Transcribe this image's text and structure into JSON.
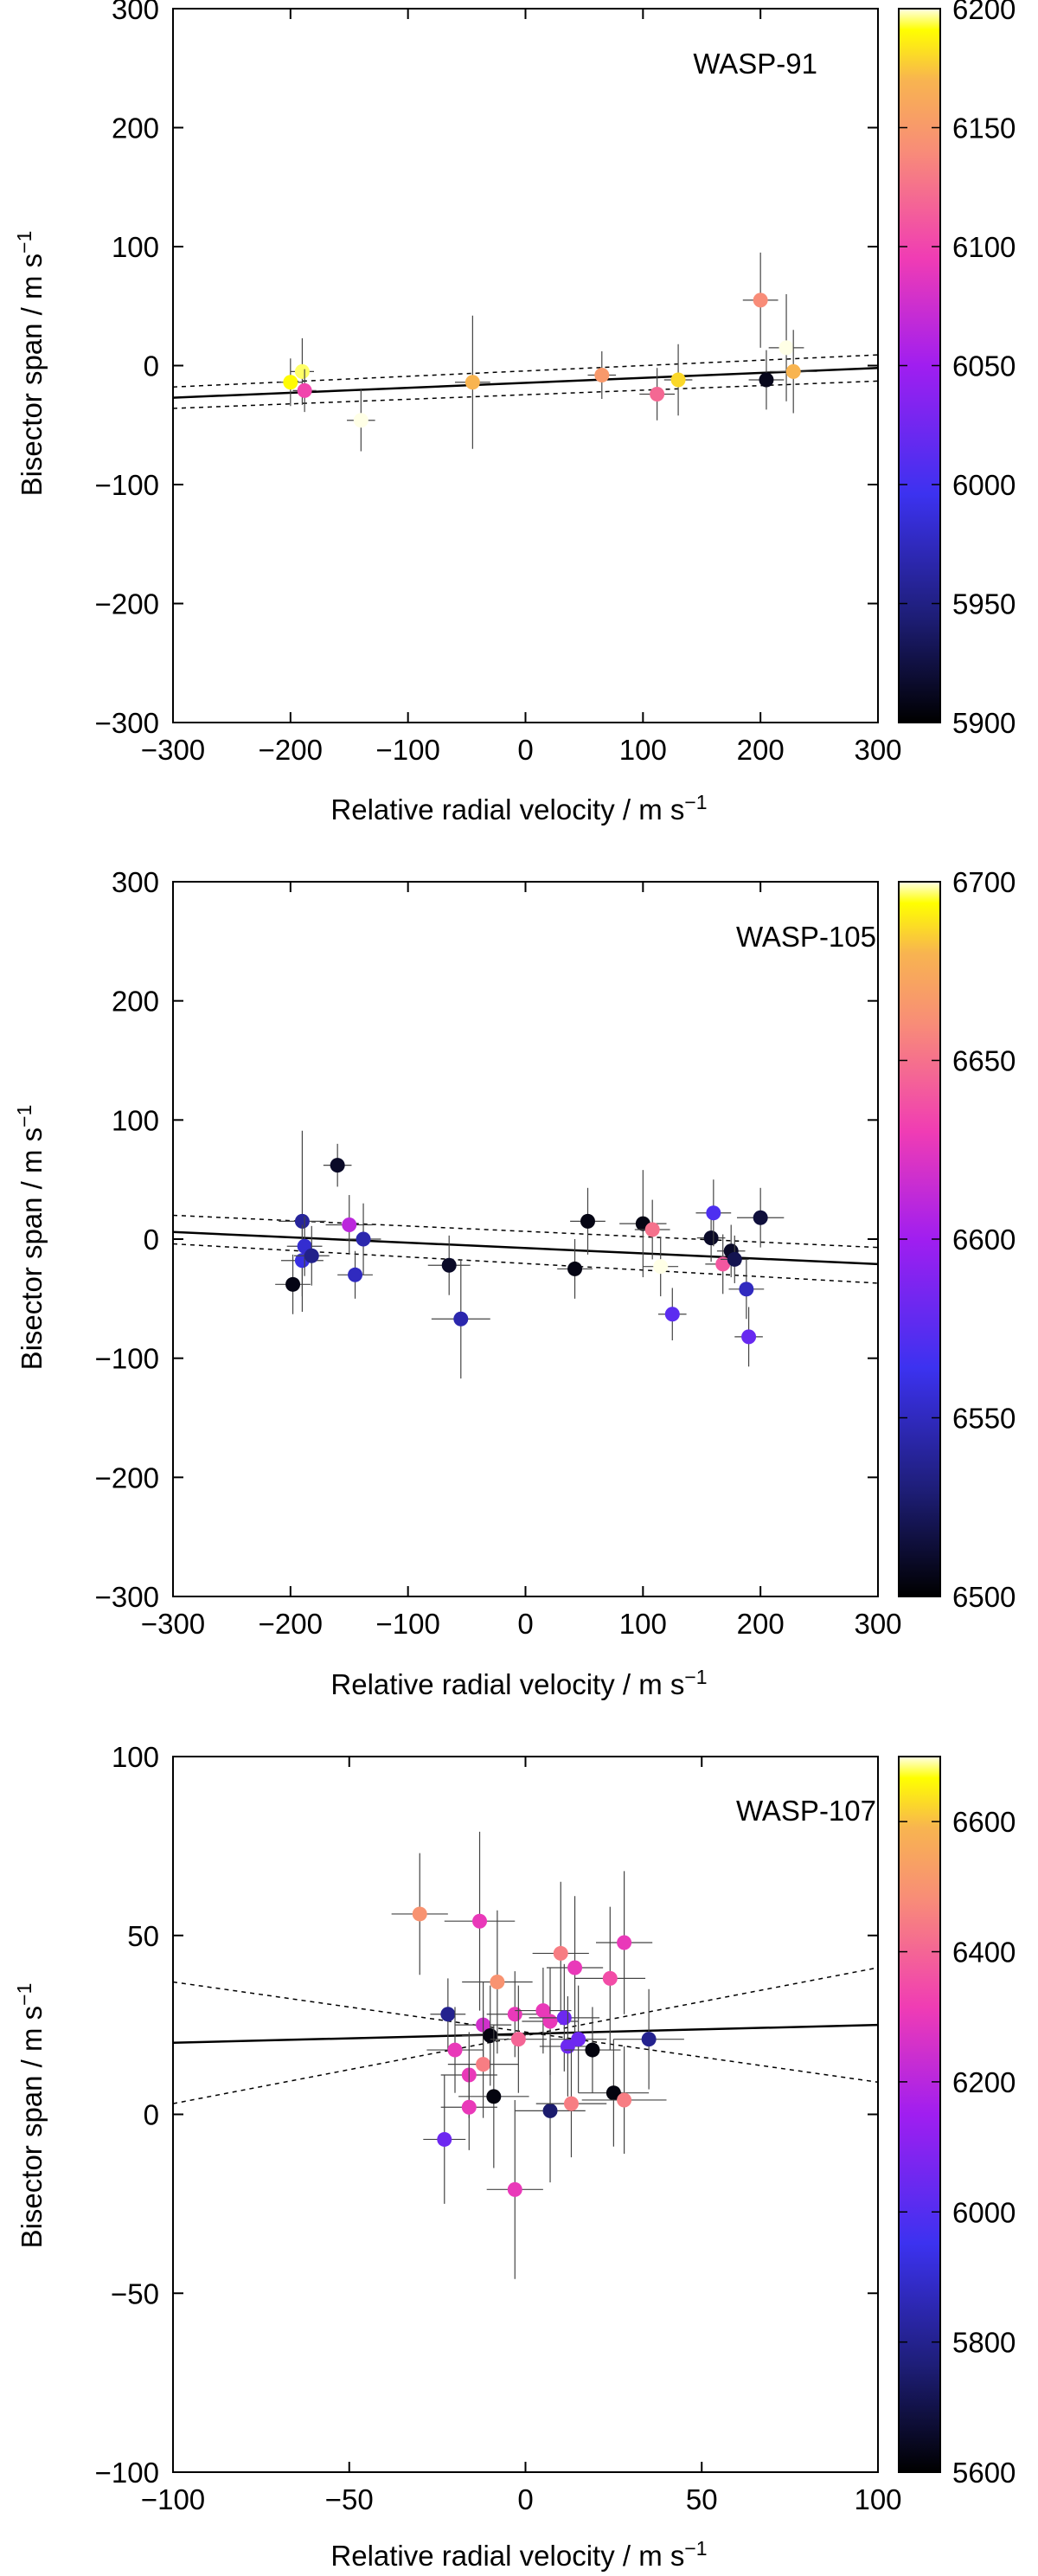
{
  "chart_data": [
    {
      "type": "scatter",
      "label": "WASP-91",
      "xlabel": "Relative radial velocity / m s",
      "xlabel_sup": "−1",
      "ylabel": "Bisector span / m s",
      "ylabel_sup": "−1",
      "xlim": [
        -300,
        300
      ],
      "ylim": [
        -300,
        300
      ],
      "xticks": [
        -300,
        -200,
        -100,
        0,
        100,
        200,
        300
      ],
      "xtick_labels": [
        "−300",
        "−200",
        "−100",
        "0",
        "100",
        "200",
        "300"
      ],
      "yticks": [
        -300,
        -200,
        -100,
        0,
        100,
        200,
        300
      ],
      "ytick_labels": [
        "−300",
        "−200",
        "−100",
        "0",
        "100",
        "200",
        "300"
      ],
      "colorbar": {
        "min": 5900,
        "max": 6200,
        "ticks": [
          5900,
          5950,
          6000,
          6050,
          6100,
          6150,
          6200
        ],
        "tick_labels": [
          "5900",
          "5950",
          "6000",
          "6050",
          "6100",
          "6150",
          "6200"
        ]
      },
      "fit_line": {
        "x": [
          -300,
          300
        ],
        "y": [
          -27,
          -2
        ]
      },
      "fit_band_upper": {
        "x": [
          -300,
          300
        ],
        "y": [
          -18,
          9
        ]
      },
      "fit_band_lower": {
        "x": [
          -300,
          300
        ],
        "y": [
          -36,
          -13
        ]
      },
      "points": [
        {
          "x": -200,
          "y": -14,
          "xerr": 10,
          "yerr": 20,
          "c": 6190
        },
        {
          "x": -190,
          "y": -5,
          "xerr": 10,
          "yerr": 28,
          "c": 6195
        },
        {
          "x": -188,
          "y": -21,
          "xerr": 10,
          "yerr": 18,
          "c": 6100
        },
        {
          "x": -140,
          "y": -46,
          "xerr": 12,
          "yerr": 26,
          "c": 6200
        },
        {
          "x": -45,
          "y": -14,
          "xerr": 15,
          "yerr": 56,
          "c": 6170
        },
        {
          "x": 65,
          "y": -8,
          "xerr": 12,
          "yerr": 20,
          "c": 6150
        },
        {
          "x": 112,
          "y": -24,
          "xerr": 15,
          "yerr": 22,
          "c": 6120
        },
        {
          "x": 130,
          "y": -12,
          "xerr": 12,
          "yerr": 30,
          "c": 6180
        },
        {
          "x": 200,
          "y": 55,
          "xerr": 15,
          "yerr": 40,
          "c": 6140
        },
        {
          "x": 205,
          "y": -12,
          "xerr": 15,
          "yerr": 25,
          "c": 5910
        },
        {
          "x": 222,
          "y": 15,
          "xerr": 15,
          "yerr": 45,
          "c": 6200
        },
        {
          "x": 228,
          "y": -5,
          "xerr": 20,
          "yerr": 35,
          "c": 6170
        }
      ]
    },
    {
      "type": "scatter",
      "label": "WASP-105",
      "xlabel": "Relative radial velocity / m s",
      "xlabel_sup": "−1",
      "ylabel": "Bisector span / m s",
      "ylabel_sup": "−1",
      "xlim": [
        -300,
        300
      ],
      "ylim": [
        -300,
        300
      ],
      "xticks": [
        -300,
        -200,
        -100,
        0,
        100,
        200,
        300
      ],
      "xtick_labels": [
        "−300",
        "−200",
        "−100",
        "0",
        "100",
        "200",
        "300"
      ],
      "yticks": [
        -300,
        -200,
        -100,
        0,
        100,
        200,
        300
      ],
      "ytick_labels": [
        "−300",
        "−200",
        "−100",
        "0",
        "100",
        "200",
        "300"
      ],
      "colorbar": {
        "min": 6500,
        "max": 6700,
        "ticks": [
          6500,
          6550,
          6600,
          6650,
          6700
        ],
        "tick_labels": [
          "6500",
          "6550",
          "6600",
          "6650",
          "6700"
        ]
      },
      "fit_line": {
        "x": [
          -300,
          300
        ],
        "y": [
          6,
          -21
        ]
      },
      "fit_band_upper": {
        "x": [
          -300,
          300
        ],
        "y": [
          20,
          -7
        ]
      },
      "fit_band_lower": {
        "x": [
          -300,
          300
        ],
        "y": [
          -4,
          -37
        ]
      },
      "points": [
        {
          "x": -198,
          "y": -38,
          "xerr": 15,
          "yerr": 25,
          "c": 6505
        },
        {
          "x": -190,
          "y": 15,
          "xerr": 20,
          "yerr": 76,
          "c": 6540
        },
        {
          "x": -190,
          "y": -18,
          "xerr": 18,
          "yerr": 30,
          "c": 6560
        },
        {
          "x": -188,
          "y": -6,
          "xerr": 15,
          "yerr": 25,
          "c": 6555
        },
        {
          "x": -182,
          "y": -14,
          "xerr": 15,
          "yerr": 25,
          "c": 6535
        },
        {
          "x": -160,
          "y": 62,
          "xerr": 12,
          "yerr": 18,
          "c": 6510
        },
        {
          "x": -150,
          "y": 12,
          "xerr": 20,
          "yerr": 25,
          "c": 6610
        },
        {
          "x": -145,
          "y": -30,
          "xerr": 15,
          "yerr": 20,
          "c": 6550
        },
        {
          "x": -138,
          "y": 0,
          "xerr": 15,
          "yerr": 30,
          "c": 6545
        },
        {
          "x": -65,
          "y": -22,
          "xerr": 18,
          "yerr": 25,
          "c": 6510
        },
        {
          "x": -55,
          "y": -67,
          "xerr": 25,
          "yerr": 50,
          "c": 6545
        },
        {
          "x": 42,
          "y": -25,
          "xerr": 15,
          "yerr": 25,
          "c": 6505
        },
        {
          "x": 53,
          "y": 15,
          "xerr": 15,
          "yerr": 28,
          "c": 6505
        },
        {
          "x": 100,
          "y": 13,
          "xerr": 20,
          "yerr": 45,
          "c": 6505
        },
        {
          "x": 108,
          "y": 8,
          "xerr": 15,
          "yerr": 25,
          "c": 6650
        },
        {
          "x": 115,
          "y": -23,
          "xerr": 15,
          "yerr": 25,
          "c": 6700
        },
        {
          "x": 125,
          "y": -63,
          "xerr": 12,
          "yerr": 22,
          "c": 6575
        },
        {
          "x": 158,
          "y": 1,
          "xerr": 12,
          "yerr": 20,
          "c": 6510
        },
        {
          "x": 160,
          "y": 22,
          "xerr": 15,
          "yerr": 28,
          "c": 6570
        },
        {
          "x": 168,
          "y": -21,
          "xerr": 15,
          "yerr": 25,
          "c": 6640
        },
        {
          "x": 175,
          "y": -10,
          "xerr": 12,
          "yerr": 22,
          "c": 6510
        },
        {
          "x": 178,
          "y": -17,
          "xerr": 12,
          "yerr": 20,
          "c": 6520
        },
        {
          "x": 188,
          "y": -42,
          "xerr": 15,
          "yerr": 25,
          "c": 6550
        },
        {
          "x": 190,
          "y": -82,
          "xerr": 12,
          "yerr": 25,
          "c": 6580
        },
        {
          "x": 200,
          "y": 18,
          "xerr": 20,
          "yerr": 25,
          "c": 6515
        }
      ]
    },
    {
      "type": "scatter",
      "label": "WASP-107",
      "xlabel": "Relative radial velocity / m s",
      "xlabel_sup": "−1",
      "ylabel": "Bisector span / m s",
      "ylabel_sup": "−1",
      "xlim": [
        -100,
        100
      ],
      "ylim": [
        -100,
        100
      ],
      "xticks": [
        -100,
        -50,
        0,
        50,
        100
      ],
      "xtick_labels": [
        "−100",
        "−50",
        "0",
        "50",
        "100"
      ],
      "yticks": [
        -100,
        -50,
        0,
        50,
        100
      ],
      "ytick_labels": [
        "−100",
        "−50",
        "0",
        "50",
        "100"
      ],
      "colorbar": {
        "min": 5600,
        "max": 6700,
        "ticks": [
          5600,
          5800,
          6000,
          6200,
          6400,
          6600
        ],
        "tick_labels": [
          "5600",
          "5800",
          "6000",
          "6200",
          "6400",
          "6600"
        ]
      },
      "fit_line": {
        "x": [
          -100,
          100
        ],
        "y": [
          20,
          25
        ]
      },
      "fit_band_upper": {
        "x": [
          -100,
          100
        ],
        "y": [
          37,
          9
        ]
      },
      "fit_band_lower": {
        "x": [
          -100,
          100
        ],
        "y": [
          3,
          41
        ]
      },
      "points": [
        {
          "x": -30,
          "y": 56,
          "xerr": 8,
          "yerr": 17,
          "c": 6500
        },
        {
          "x": -13,
          "y": 54,
          "xerr": 10,
          "yerr": 25,
          "c": 6300
        },
        {
          "x": -22,
          "y": 28,
          "xerr": 5,
          "yerr": 10,
          "c": 5800
        },
        {
          "x": -20,
          "y": 18,
          "xerr": 8,
          "yerr": 12,
          "c": 6300
        },
        {
          "x": -16,
          "y": 11,
          "xerr": 8,
          "yerr": 12,
          "c": 6300
        },
        {
          "x": -16,
          "y": 2,
          "xerr": 8,
          "yerr": 12,
          "c": 6300
        },
        {
          "x": -23,
          "y": -7,
          "xerr": 6,
          "yerr": 18,
          "c": 6050
        },
        {
          "x": -12,
          "y": 25,
          "xerr": 8,
          "yerr": 12,
          "c": 6250
        },
        {
          "x": -12,
          "y": 14,
          "xerr": 10,
          "yerr": 15,
          "c": 6450
        },
        {
          "x": -10,
          "y": 22,
          "xerr": 8,
          "yerr": 14,
          "c": 5620
        },
        {
          "x": -9,
          "y": 5,
          "xerr": 10,
          "yerr": 20,
          "c": 5620
        },
        {
          "x": -8,
          "y": 37,
          "xerr": 10,
          "yerr": 20,
          "c": 6500
        },
        {
          "x": -3,
          "y": 28,
          "xerr": 8,
          "yerr": 12,
          "c": 6300
        },
        {
          "x": -2,
          "y": 21,
          "xerr": 8,
          "yerr": 15,
          "c": 6400
        },
        {
          "x": -3,
          "y": -21,
          "xerr": 8,
          "yerr": 25,
          "c": 6300
        },
        {
          "x": 5,
          "y": 29,
          "xerr": 8,
          "yerr": 12,
          "c": 6300
        },
        {
          "x": 7,
          "y": 26,
          "xerr": 8,
          "yerr": 15,
          "c": 6300
        },
        {
          "x": 7,
          "y": 1,
          "xerr": 10,
          "yerr": 20,
          "c": 5750
        },
        {
          "x": 10,
          "y": 45,
          "xerr": 8,
          "yerr": 20,
          "c": 6450
        },
        {
          "x": 11,
          "y": 27,
          "xerr": 10,
          "yerr": 15,
          "c": 6050
        },
        {
          "x": 12,
          "y": 19,
          "xerr": 8,
          "yerr": 14,
          "c": 6050
        },
        {
          "x": 13,
          "y": 3,
          "xerr": 10,
          "yerr": 15,
          "c": 6450
        },
        {
          "x": 14,
          "y": 41,
          "xerr": 8,
          "yerr": 20,
          "c": 6300
        },
        {
          "x": 15,
          "y": 21,
          "xerr": 8,
          "yerr": 15,
          "c": 6050
        },
        {
          "x": 19,
          "y": 18,
          "xerr": 8,
          "yerr": 12,
          "c": 5620
        },
        {
          "x": 24,
          "y": 38,
          "xerr": 10,
          "yerr": 20,
          "c": 6350
        },
        {
          "x": 25,
          "y": 6,
          "xerr": 10,
          "yerr": 15,
          "c": 5620
        },
        {
          "x": 28,
          "y": 48,
          "xerr": 8,
          "yerr": 20,
          "c": 6300
        },
        {
          "x": 28,
          "y": 4,
          "xerr": 12,
          "yerr": 15,
          "c": 6450
        },
        {
          "x": 35,
          "y": 21,
          "xerr": 10,
          "yerr": 14,
          "c": 5800
        }
      ]
    }
  ]
}
